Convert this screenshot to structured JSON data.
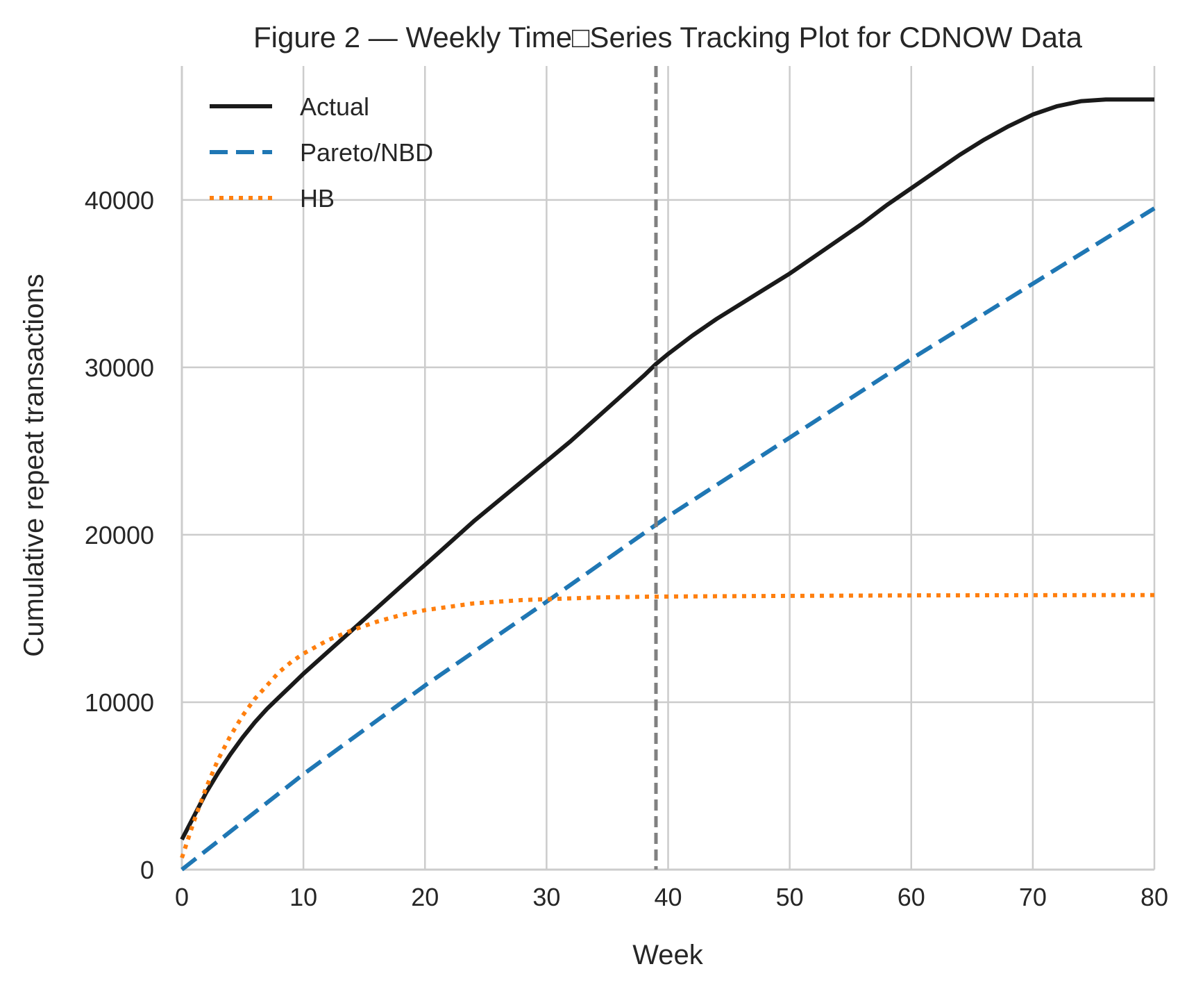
{
  "chart_data": {
    "type": "line",
    "title": "Figure 2 — Weekly Time□Series Tracking Plot for CDNOW Data",
    "xlabel": "Week",
    "ylabel": "Cumulative repeat transactions",
    "xlim": [
      0,
      80
    ],
    "ylim": [
      0,
      48000
    ],
    "x_ticks": [
      0,
      10,
      20,
      30,
      40,
      50,
      60,
      70,
      80
    ],
    "y_ticks": [
      0,
      10000,
      20000,
      30000,
      40000
    ],
    "grid": true,
    "legend_position": "top-left",
    "vline": {
      "x": 39,
      "style": "dashed",
      "color": "#808080"
    },
    "series": [
      {
        "name": "Actual",
        "color": "#1a1a1a",
        "style": "solid",
        "points": [
          [
            0,
            1800
          ],
          [
            1,
            3200
          ],
          [
            2,
            4600
          ],
          [
            3,
            5800
          ],
          [
            4,
            6900
          ],
          [
            5,
            7900
          ],
          [
            6,
            8800
          ],
          [
            7,
            9600
          ],
          [
            8,
            10300
          ],
          [
            9,
            11000
          ],
          [
            10,
            11700
          ],
          [
            12,
            13000
          ],
          [
            14,
            14300
          ],
          [
            16,
            15600
          ],
          [
            18,
            16900
          ],
          [
            20,
            18200
          ],
          [
            22,
            19500
          ],
          [
            24,
            20800
          ],
          [
            26,
            22000
          ],
          [
            28,
            23200
          ],
          [
            30,
            24400
          ],
          [
            32,
            25600
          ],
          [
            34,
            26900
          ],
          [
            36,
            28200
          ],
          [
            38,
            29500
          ],
          [
            39,
            30200
          ],
          [
            40,
            30800
          ],
          [
            42,
            31900
          ],
          [
            44,
            32900
          ],
          [
            46,
            33800
          ],
          [
            48,
            34700
          ],
          [
            50,
            35600
          ],
          [
            52,
            36600
          ],
          [
            54,
            37600
          ],
          [
            56,
            38600
          ],
          [
            58,
            39700
          ],
          [
            60,
            40700
          ],
          [
            62,
            41700
          ],
          [
            64,
            42700
          ],
          [
            66,
            43600
          ],
          [
            68,
            44400
          ],
          [
            70,
            45100
          ],
          [
            72,
            45600
          ],
          [
            74,
            45900
          ],
          [
            76,
            46000
          ],
          [
            78,
            46000
          ],
          [
            80,
            46000
          ]
        ]
      },
      {
        "name": "Pareto/NBD",
        "color": "#1f77b4",
        "style": "dashed",
        "points": [
          [
            0,
            0
          ],
          [
            10,
            5700
          ],
          [
            20,
            11000
          ],
          [
            30,
            16000
          ],
          [
            39,
            20600
          ],
          [
            40,
            21100
          ],
          [
            50,
            25800
          ],
          [
            60,
            30500
          ],
          [
            70,
            35000
          ],
          [
            80,
            39500
          ]
        ]
      },
      {
        "name": "HB",
        "color": "#ff7f0e",
        "style": "dotted",
        "points": [
          [
            0,
            700
          ],
          [
            1,
            2900
          ],
          [
            2,
            4900
          ],
          [
            3,
            6600
          ],
          [
            4,
            8000
          ],
          [
            5,
            9200
          ],
          [
            6,
            10200
          ],
          [
            7,
            11000
          ],
          [
            8,
            11800
          ],
          [
            9,
            12400
          ],
          [
            10,
            12900
          ],
          [
            12,
            13700
          ],
          [
            14,
            14300
          ],
          [
            16,
            14800
          ],
          [
            18,
            15200
          ],
          [
            20,
            15500
          ],
          [
            22,
            15700
          ],
          [
            24,
            15900
          ],
          [
            26,
            16000
          ],
          [
            28,
            16100
          ],
          [
            30,
            16150
          ],
          [
            34,
            16250
          ],
          [
            38,
            16300
          ],
          [
            42,
            16320
          ],
          [
            50,
            16350
          ],
          [
            60,
            16380
          ],
          [
            70,
            16390
          ],
          [
            80,
            16400
          ]
        ]
      }
    ]
  }
}
